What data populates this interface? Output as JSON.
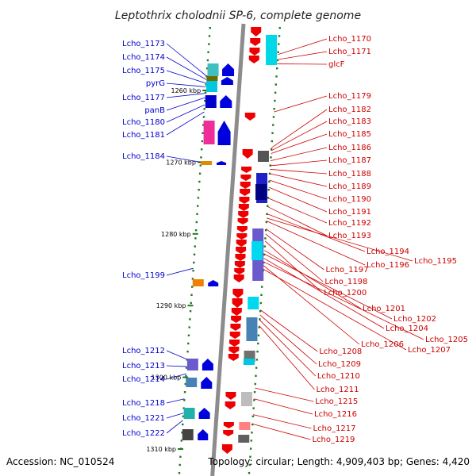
{
  "title": "Leptothrix cholodnii SP-6, complete genome",
  "footer": {
    "accession": "Accession: NC_010524",
    "topology": "Topology: circular; Length: 4,909,403 bp; Genes: 4,420"
  },
  "scale": {
    "ticks": [
      {
        "kbp": 1260,
        "label": "1260 kbp"
      },
      {
        "kbp": 1270,
        "label": "1270 kbp"
      },
      {
        "kbp": 1280,
        "label": "1280 kbp"
      },
      {
        "kbp": 1290,
        "label": "1290 kbp"
      },
      {
        "kbp": 1300,
        "label": "1300 kbp"
      },
      {
        "kbp": 1310,
        "label": "1310 kbp"
      }
    ]
  },
  "labels_left": [
    {
      "name": "Lcho_1173",
      "kbp": 1258.0
    },
    {
      "name": "Lcho_1174",
      "kbp": 1258.5
    },
    {
      "name": "Lcho_1175",
      "kbp": 1259.0
    },
    {
      "name": "pyrG",
      "kbp": 1259.5
    },
    {
      "name": "Lcho_1177",
      "kbp": 1260.4
    },
    {
      "name": "panB",
      "kbp": 1261.0
    },
    {
      "name": "Lcho_1180",
      "kbp": 1262.0
    },
    {
      "name": "Lcho_1181",
      "kbp": 1263.0
    },
    {
      "name": "Lcho_1184",
      "kbp": 1270.0
    },
    {
      "name": "Lcho_1199",
      "kbp": 1284.8
    },
    {
      "name": "Lcho_1212",
      "kbp": 1297.5
    },
    {
      "name": "Lcho_1213",
      "kbp": 1298.5
    },
    {
      "name": "Lcho_1214",
      "kbp": 1299.5
    },
    {
      "name": "Lcho_1218",
      "kbp": 1303.0
    },
    {
      "name": "Lcho_1221",
      "kbp": 1305.0
    },
    {
      "name": "Lcho_1222",
      "kbp": 1306.0
    }
  ],
  "labels_right": [
    {
      "name": "Lcho_1170",
      "kbp": 1255.0
    },
    {
      "name": "Lcho_1171",
      "kbp": 1255.7
    },
    {
      "name": "glcF",
      "kbp": 1256.3
    },
    {
      "name": "Lcho_1179",
      "kbp": 1263.0
    },
    {
      "name": "Lcho_1182",
      "kbp": 1268.0
    },
    {
      "name": "Lcho_1183",
      "kbp": 1268.4
    },
    {
      "name": "Lcho_1185",
      "kbp": 1268.8
    },
    {
      "name": "Lcho_1186",
      "kbp": 1269.8
    },
    {
      "name": "Lcho_1187",
      "kbp": 1270.5
    },
    {
      "name": "Lcho_1188",
      "kbp": 1271.0
    },
    {
      "name": "Lcho_1189",
      "kbp": 1271.6
    },
    {
      "name": "Lcho_1190",
      "kbp": 1272.5
    },
    {
      "name": "Lcho_1191",
      "kbp": 1273.5
    },
    {
      "name": "Lcho_1192",
      "kbp": 1275.0
    },
    {
      "name": "Lcho_1193",
      "kbp": 1276.2
    },
    {
      "name": "Lcho_1194",
      "kbp": 1277.2
    },
    {
      "name": "Lcho_1195",
      "kbp": 1277.8
    },
    {
      "name": "Lcho_1196",
      "kbp": 1278.2
    },
    {
      "name": "Lcho_1197",
      "kbp": 1279.3
    },
    {
      "name": "Lcho_1198",
      "kbp": 1280.0
    },
    {
      "name": "Lcho_1200",
      "kbp": 1281.0
    },
    {
      "name": "Lcho_1201",
      "kbp": 1282.3
    },
    {
      "name": "Lcho_1202",
      "kbp": 1282.8
    },
    {
      "name": "Lcho_1204",
      "kbp": 1283.4
    },
    {
      "name": "Lcho_1205",
      "kbp": 1283.9
    },
    {
      "name": "Lcho_1206",
      "kbp": 1284.4
    },
    {
      "name": "Lcho_1207",
      "kbp": 1284.9
    },
    {
      "name": "Lcho_1208",
      "kbp": 1290.6
    },
    {
      "name": "Lcho_1209",
      "kbp": 1291.3
    },
    {
      "name": "Lcho_1210",
      "kbp": 1292.0
    },
    {
      "name": "Lcho_1211",
      "kbp": 1292.8
    },
    {
      "name": "Lcho_1215",
      "kbp": 1301.5
    },
    {
      "name": "Lcho_1216",
      "kbp": 1303.0
    },
    {
      "name": "Lcho_1217",
      "kbp": 1305.2
    },
    {
      "name": "Lcho_1219",
      "kbp": 1306.5
    }
  ],
  "colors": {
    "backbone": "#8c8c8c",
    "forward_cds": "#0000dd",
    "reverse_cds": "#ee0000",
    "tick_green": "#1e7a1e",
    "label_blue": "#0000cc",
    "label_red": "#cc0000"
  }
}
